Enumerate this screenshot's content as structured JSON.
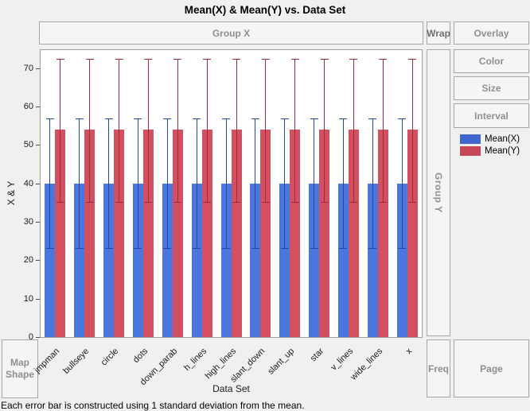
{
  "title": "Mean(X) & Mean(Y) vs. Data Set",
  "footnote": "Each error bar is constructed using 1 standard deviation from the mean.",
  "drop_zones": {
    "group_x": "Group X",
    "wrap": "Wrap",
    "overlay": "Overlay",
    "color": "Color",
    "size": "Size",
    "interval": "Interval",
    "group_y": "Group Y",
    "map_shape": "Map Shape",
    "freq": "Freq",
    "page": "Page"
  },
  "legend": {
    "items": [
      {
        "label": "Mean(X)",
        "color": "#3e68cd"
      },
      {
        "label": "Mean(Y)",
        "color": "#c64757"
      }
    ]
  },
  "chart_data": {
    "type": "bar",
    "title": "Mean(X) & Mean(Y) vs. Data Set",
    "xlabel": "Data Set",
    "ylabel": "X & Y",
    "ylim": [
      0,
      74.7
    ],
    "yticks": [
      0,
      10,
      20,
      30,
      40,
      50,
      60,
      70
    ],
    "grid": false,
    "legend_position": "right",
    "categories": [
      "jmpman",
      "bullseye",
      "circle",
      "dots",
      "down_parab",
      "h_lines",
      "high_lines",
      "slant_down",
      "slant_up",
      "star",
      "v_lines",
      "wide_lines",
      "x"
    ],
    "series": [
      {
        "name": "Mean(X)",
        "bar_color": "#4b76dd",
        "error_color": "#25479e",
        "values": [
          40,
          40,
          40,
          40,
          40,
          40,
          40,
          40,
          40,
          40,
          40,
          40,
          40
        ],
        "error_low": [
          23,
          23,
          23,
          23,
          23,
          23,
          23,
          23,
          23,
          23,
          23,
          23,
          23
        ],
        "error_high": [
          57,
          57,
          57,
          57,
          57,
          57,
          57,
          57,
          57,
          57,
          57,
          57,
          57
        ]
      },
      {
        "name": "Mean(Y)",
        "bar_color": "#d35060",
        "error_color": "#9c2b3b",
        "values": [
          54,
          54,
          54,
          54,
          54,
          54,
          54,
          54,
          54,
          54,
          54,
          54,
          54
        ],
        "error_low": [
          35,
          35,
          35,
          35,
          35,
          35,
          35,
          35,
          35,
          35,
          35,
          35,
          35
        ],
        "error_high": [
          72.4,
          72.4,
          72.4,
          72.4,
          72.4,
          72.4,
          72.4,
          72.4,
          72.4,
          72.4,
          72.4,
          72.4,
          72.4
        ]
      }
    ]
  }
}
